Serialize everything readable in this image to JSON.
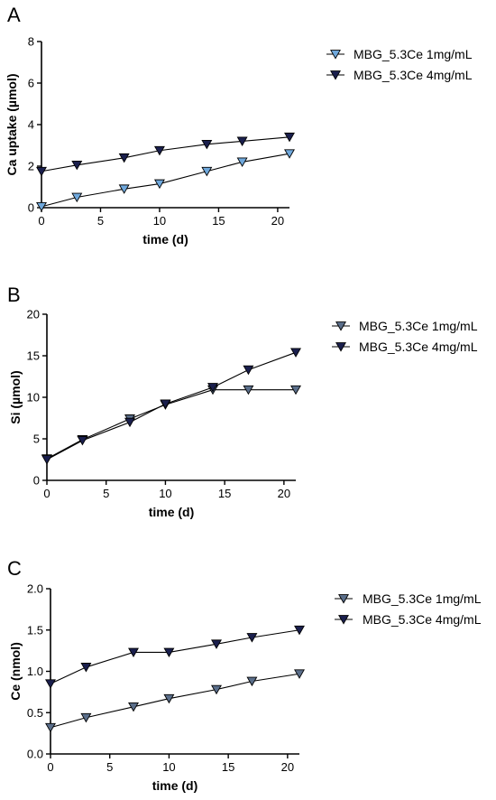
{
  "chart_data": [
    {
      "type": "line",
      "panel_label": "A",
      "xlabel": "time (d)",
      "ylabel": "Ca uptake (µmol)",
      "xlim": [
        0,
        21
      ],
      "ylim": [
        0,
        8
      ],
      "xticks": [
        0,
        5,
        10,
        15,
        20
      ],
      "yticks": [
        0,
        2,
        4,
        6,
        8
      ],
      "grid": false,
      "legend": "right",
      "x": [
        0,
        3,
        7,
        10,
        14,
        17,
        21
      ],
      "series": [
        {
          "name": "MBG_5.3Ce 1mg/mL",
          "values": [
            0.05,
            0.5,
            0.9,
            1.15,
            1.75,
            2.2,
            2.6
          ],
          "color": "#6fa8dc"
        },
        {
          "name": "MBG_5.3Ce 4mg/mL",
          "values": [
            1.75,
            2.05,
            2.4,
            2.75,
            3.05,
            3.2,
            3.4
          ],
          "color": "#1a1f4d"
        }
      ]
    },
    {
      "type": "line",
      "panel_label": "B",
      "xlabel": "time (d)",
      "ylabel": "Si (µmol)",
      "xlim": [
        0,
        21
      ],
      "ylim": [
        0,
        20
      ],
      "xticks": [
        0,
        5,
        10,
        15,
        20
      ],
      "yticks": [
        0,
        5,
        10,
        15,
        20
      ],
      "grid": false,
      "legend": "right",
      "x": [
        0,
        3,
        7,
        10,
        14,
        17,
        21
      ],
      "series": [
        {
          "name": "MBG_5.3Ce 1mg/mL",
          "values": [
            2.6,
            4.9,
            7.4,
            9.1,
            10.9,
            10.9,
            10.9
          ],
          "color": "#5a6e8a"
        },
        {
          "name": "MBG_5.3Ce 4mg/mL",
          "values": [
            2.5,
            4.8,
            7.0,
            9.2,
            11.2,
            13.3,
            15.4
          ],
          "color": "#1a1f4d"
        }
      ]
    },
    {
      "type": "line",
      "panel_label": "C",
      "xlabel": "time (d)",
      "ylabel": "Ce (nmol)",
      "xlim": [
        0,
        21
      ],
      "ylim": [
        0,
        2.0
      ],
      "xticks": [
        0,
        5,
        10,
        15,
        20
      ],
      "yticks": [
        0.0,
        0.5,
        1.0,
        1.5,
        2.0
      ],
      "yticks_labels": [
        "0.0",
        "0.5",
        "1.0",
        "1.5",
        "2.0"
      ],
      "grid": false,
      "legend": "right",
      "x": [
        0,
        3,
        7,
        10,
        14,
        17,
        21
      ],
      "series": [
        {
          "name": "MBG_5.3Ce 1mg/mL",
          "values": [
            0.32,
            0.44,
            0.57,
            0.67,
            0.78,
            0.88,
            0.97
          ],
          "color": "#5a6e8a"
        },
        {
          "name": "MBG_5.3Ce 4mg/mL",
          "values": [
            0.85,
            1.05,
            1.23,
            1.23,
            1.33,
            1.41,
            1.5
          ],
          "color": "#1a1f4d"
        }
      ]
    }
  ]
}
